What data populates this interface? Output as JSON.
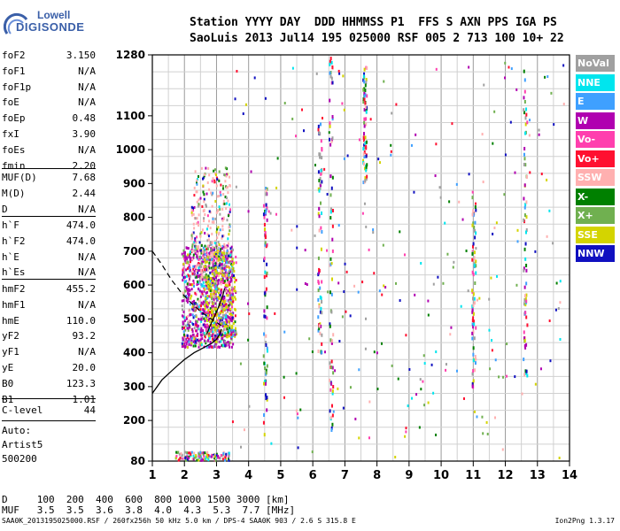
{
  "logo": {
    "line1": "Lowell",
    "line2": "DIGISONDE"
  },
  "header": {
    "row1": "Station YYYY DAY  DDD HHMMSS P1  FFS S AXN PPS IGA PS",
    "row2": "SaoLuis 2013 Jul14 195 025000 RSF 005 2 713 100 10+ 22"
  },
  "params_group1": [
    {
      "label": "foF2",
      "value": "3.150"
    },
    {
      "label": "foF1",
      "value": "N/A"
    },
    {
      "label": "foF1p",
      "value": "N/A"
    },
    {
      "label": "foE",
      "value": "N/A"
    },
    {
      "label": "foEp",
      "value": "0.48"
    },
    {
      "label": "fxI",
      "value": "3.90"
    },
    {
      "label": "foEs",
      "value": "N/A"
    },
    {
      "label": "fmin",
      "value": "2.20"
    }
  ],
  "params_group2": [
    {
      "label": "MUF(D)",
      "value": "7.68"
    },
    {
      "label": "M(D)",
      "value": "2.44"
    },
    {
      "label": "D",
      "value": "N/A"
    }
  ],
  "params_group3": [
    {
      "label": "h`F",
      "value": "474.0"
    },
    {
      "label": "h`F2",
      "value": "474.0"
    },
    {
      "label": "h`E",
      "value": "N/A"
    },
    {
      "label": "h`Es",
      "value": "N/A"
    }
  ],
  "params_group4": [
    {
      "label": "hmF2",
      "value": "455.2"
    },
    {
      "label": "hmF1",
      "value": "N/A"
    },
    {
      "label": "hmE",
      "value": "110.0"
    },
    {
      "label": "yF2",
      "value": "93.2"
    },
    {
      "label": "yF1",
      "value": "N/A"
    },
    {
      "label": "yE",
      "value": "20.0"
    },
    {
      "label": "B0",
      "value": "123.3"
    },
    {
      "label": "B1",
      "value": "1.01"
    }
  ],
  "params_group5": [
    {
      "label": "C-level",
      "value": "44"
    }
  ],
  "auto": {
    "line1": "Auto:",
    "line2": "Artist5",
    "line3": "500200"
  },
  "legend": [
    {
      "label": "NoVal",
      "color": "#a0a0a0"
    },
    {
      "label": "NNE",
      "color": "#00e5ee"
    },
    {
      "label": "E",
      "color": "#3fa0ff"
    },
    {
      "label": "W",
      "color": "#b000b0"
    },
    {
      "label": "Vo-",
      "color": "#ff3fae"
    },
    {
      "label": "Vo+",
      "color": "#ff1030"
    },
    {
      "label": "SSW",
      "color": "#ffb0b0"
    },
    {
      "label": "X-",
      "color": "#008000"
    },
    {
      "label": "X+",
      "color": "#70b050"
    },
    {
      "label": "SSE",
      "color": "#d4d400"
    },
    {
      "label": "NNW",
      "color": "#1010c0"
    }
  ],
  "dist_table": {
    "row1": "D     100  200  400  600  800 1000 1500 3000 [km]",
    "row2": "MUF   3.5  3.5  3.6  3.8  4.0  4.3  5.3  7.7 [MHz]"
  },
  "footer": "SAA0K_2013195025000.RSF / 260fx256h 50 kHz 5.0 km / DPS-4 SAA0K 903 / 2.6 S 315.8 E",
  "version": "Ion2Png 1.3.17",
  "chart_data": {
    "type": "scatter",
    "title": "",
    "xlabel": "",
    "ylabel": "",
    "xlim": [
      1,
      14
    ],
    "ylim": [
      80,
      1280
    ],
    "x_ticks": [
      "1",
      "2",
      "3",
      "4",
      "5",
      "6",
      "7",
      "8",
      "9",
      "10",
      "11",
      "12",
      "13",
      "14"
    ],
    "y_ticks": [
      "80",
      "200",
      "300",
      "400",
      "500",
      "600",
      "700",
      "800",
      "900",
      "1000",
      "1100",
      "1280"
    ],
    "grid": true,
    "legend_position": "right",
    "profile_line": {
      "x": [
        1.0,
        1.3,
        1.7,
        2.0,
        2.3,
        2.6,
        2.85,
        3.0,
        3.1,
        3.15
      ],
      "y": [
        280,
        320,
        355,
        380,
        400,
        415,
        428,
        440,
        455,
        470
      ]
    },
    "profile_dashed": {
      "x": [
        1.0,
        1.3,
        1.6,
        1.9,
        2.2,
        2.5,
        2.8,
        3.0,
        3.15
      ],
      "y": [
        700,
        660,
        615,
        578,
        548,
        522,
        502,
        490,
        480
      ]
    },
    "profile_upper": {
      "x": [
        2.7,
        2.8,
        2.9,
        3.0,
        3.1,
        3.2,
        3.25
      ],
      "y": [
        455,
        480,
        500,
        520,
        545,
        570,
        590
      ]
    },
    "echo_clusters": [
      {
        "x_range": [
          1.9,
          3.5
        ],
        "y_range": [
          420,
          720
        ],
        "density": "high",
        "color": "W"
      },
      {
        "x_range": [
          2.2,
          3.4
        ],
        "y_range": [
          600,
          950
        ],
        "density": "medium",
        "color": "SSW"
      },
      {
        "x_range": [
          2.6,
          3.6
        ],
        "y_range": [
          450,
          700
        ],
        "density": "medium",
        "color": "SSE"
      }
    ],
    "vertical_traces": [
      {
        "x": 4.5,
        "y_range": [
          160,
          900
        ]
      },
      {
        "x": 6.2,
        "y_range": [
          400,
          1100
        ]
      },
      {
        "x": 6.55,
        "y_range": [
          160,
          1280
        ]
      },
      {
        "x": 7.6,
        "y_range": [
          900,
          1250
        ]
      },
      {
        "x": 11.0,
        "y_range": [
          300,
          870
        ]
      },
      {
        "x": 12.6,
        "y_range": [
          300,
          1250
        ]
      }
    ],
    "ground_echo": {
      "x_range": [
        1.7,
        3.4
      ],
      "y_range": [
        85,
        110
      ]
    }
  }
}
